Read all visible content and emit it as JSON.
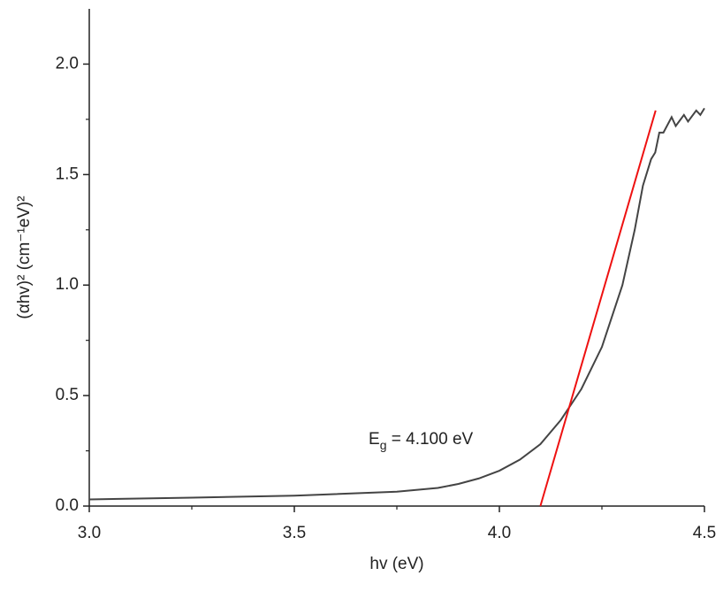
{
  "chart_data": {
    "type": "line",
    "x_label": "hv (eV)",
    "y_label": "(αhv)² (cm⁻¹eV)²",
    "annotation": {
      "main": "E",
      "sub": "g",
      "rest": " = 4.100 eV"
    },
    "xlim": [
      3.0,
      4.5
    ],
    "ylim": [
      0,
      2.25
    ],
    "xticks": [
      {
        "value": 3,
        "label": "3.0"
      },
      {
        "value": 3.5,
        "label": "3.5"
      },
      {
        "value": 4,
        "label": "4.0"
      },
      {
        "value": 4.5,
        "label": "4.5"
      }
    ],
    "xminorticks": [
      3.25,
      3.75,
      4.25
    ],
    "yticks": [
      {
        "value": 0,
        "label": "0.0"
      },
      {
        "value": 0.5,
        "label": "0.5"
      },
      {
        "value": 1,
        "label": "1.0"
      },
      {
        "value": 1.5,
        "label": "1.5"
      },
      {
        "value": 2,
        "label": "2.0"
      }
    ],
    "yminorticks": [
      0.25,
      0.75,
      1.25,
      1.75
    ],
    "series": [
      {
        "color": "#444444",
        "x": [
          3.0,
          3.25,
          3.5,
          3.75,
          3.85,
          3.9,
          3.95,
          4.0,
          4.05,
          4.1,
          4.15,
          4.2,
          4.25,
          4.3,
          4.33,
          4.35,
          4.37,
          4.38,
          4.39,
          4.4,
          4.42,
          4.43,
          4.45,
          4.46,
          4.48,
          4.49,
          4.5
        ],
        "values": [
          0.03,
          0.038,
          0.047,
          0.065,
          0.082,
          0.1,
          0.125,
          0.16,
          0.21,
          0.28,
          0.39,
          0.53,
          0.72,
          1.0,
          1.25,
          1.45,
          1.57,
          1.6,
          1.69,
          1.69,
          1.76,
          1.72,
          1.77,
          1.74,
          1.79,
          1.77,
          1.8
        ]
      },
      {
        "color": "#ee1111",
        "x": [
          4.1,
          4.381
        ],
        "values": [
          0,
          1.79
        ]
      }
    ]
  }
}
